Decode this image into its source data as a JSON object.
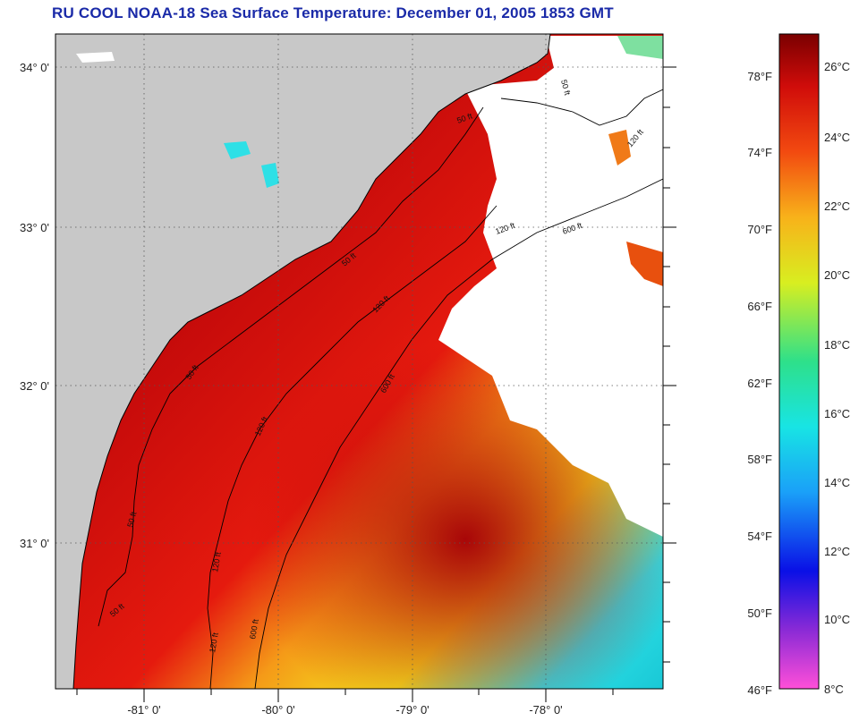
{
  "title": "RU COOL  NOAA-18  Sea Surface Temperature:  December 01, 2005 1853 GMT",
  "map": {
    "lat_labels": [
      "34° 0'",
      "33° 0'",
      "32° 0'",
      "31° 0'"
    ],
    "lon_labels": [
      "-81° 0'",
      "-80° 0'",
      "-79° 0'",
      "-78° 0'"
    ],
    "contour_labels": [
      "50 ft",
      "50 ft",
      "50 ft",
      "50 ft",
      "50 ft",
      "120 ft",
      "120 ft",
      "120 ft",
      "120 ft",
      "120 ft",
      "600 ft",
      "600 ft",
      "600 ft",
      "120 ft",
      "50 ft"
    ],
    "colors": {
      "land": "#c8c8c8",
      "cloud": "#ffffff",
      "coast": "#000000"
    }
  },
  "colorbar": {
    "fahrenheit": [
      "78°F",
      "74°F",
      "70°F",
      "66°F",
      "62°F",
      "58°F",
      "54°F",
      "50°F",
      "46°F"
    ],
    "celsius": [
      "26°C",
      "24°C",
      "22°C",
      "20°C",
      "18°C",
      "16°C",
      "14°C",
      "12°C",
      "10°C",
      "8°C"
    ]
  }
}
